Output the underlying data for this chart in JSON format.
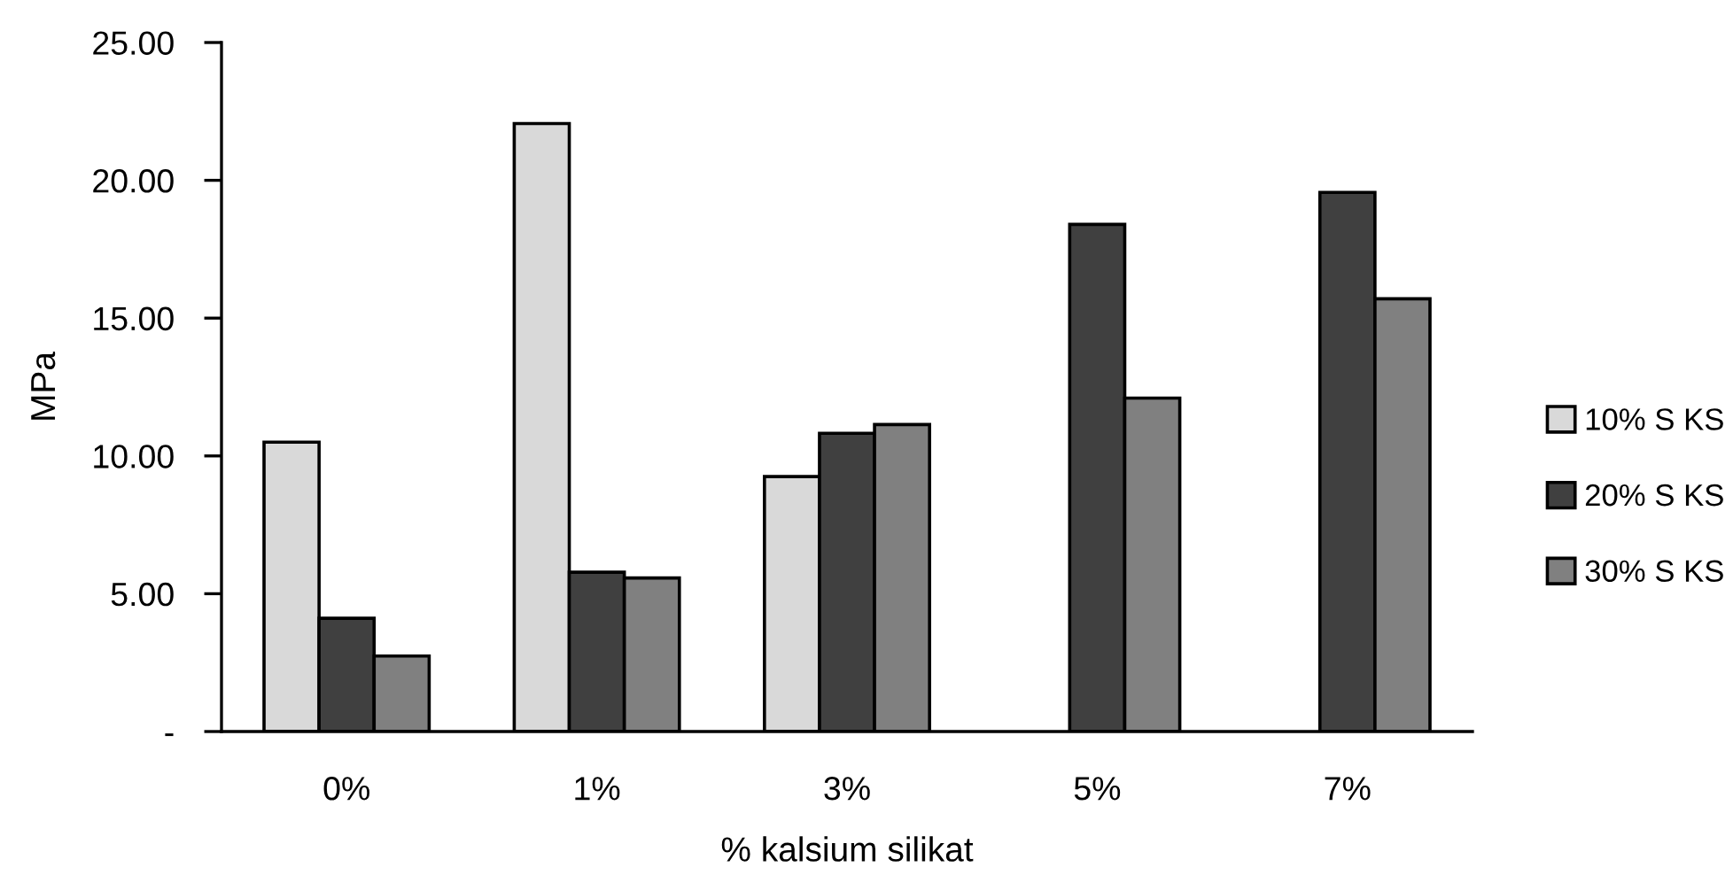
{
  "chart_data": {
    "type": "bar",
    "xlabel": "% kalsium silikat",
    "ylabel": "MPa",
    "categories": [
      "0%",
      "1%",
      "3%",
      "5%",
      "7%"
    ],
    "series": [
      {
        "name": "10% S KS",
        "color": "#d9d9d9",
        "values": [
          10.5,
          22.06,
          9.25,
          null,
          null
        ]
      },
      {
        "name": "20% S KS",
        "color": "#404040",
        "values": [
          4.11,
          5.78,
          10.82,
          18.4,
          19.56
        ]
      },
      {
        "name": "30% S KS",
        "color": "#808080",
        "values": [
          2.74,
          5.57,
          11.14,
          12.1,
          15.7
        ]
      }
    ],
    "ylim": [
      0,
      25
    ],
    "yticks": [
      {
        "value": 0,
        "label": "-"
      },
      {
        "value": 5,
        "label": "5.00"
      },
      {
        "value": 10,
        "label": "10.00"
      },
      {
        "value": 15,
        "label": "15.00"
      },
      {
        "value": 20,
        "label": "20.00"
      },
      {
        "value": 25,
        "label": "25.00"
      }
    ],
    "grid": false,
    "legend": "right"
  }
}
